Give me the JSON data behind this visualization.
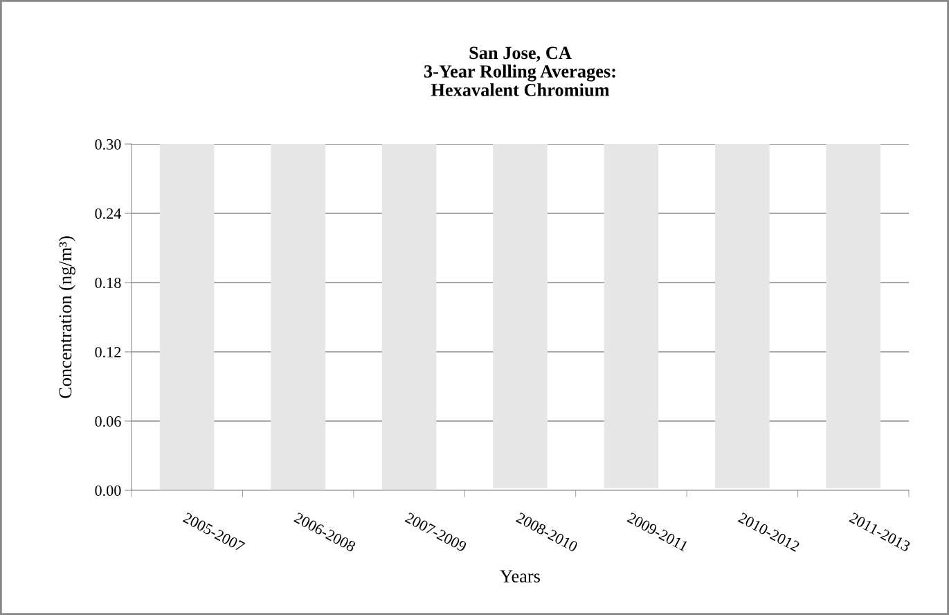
{
  "chart_data": {
    "type": "bar",
    "title": "San Jose, CA\n3-Year Rolling Averages:\nHexavalent Chromium",
    "xlabel": "Years",
    "ylabel": "Concentration (ng/m³)",
    "categories": [
      "2005-2007",
      "2006-2008",
      "2007-2009",
      "2008-2010",
      "2009-2011",
      "2010-2012",
      "2011-2013"
    ],
    "base": [
      0,
      0,
      0,
      0.002,
      0.002,
      0.002,
      0.002
    ],
    "values": [
      0.3,
      0.3,
      0.3,
      0.298,
      0.298,
      0.298,
      0.298
    ],
    "color": "#e6e6e6",
    "ylim": [
      0,
      0.3
    ],
    "yticks": [
      {
        "value": 0,
        "label": "0.00"
      },
      {
        "value": 0.06,
        "label": "0.06"
      },
      {
        "value": 0.12,
        "label": "0.12"
      },
      {
        "value": 0.18,
        "label": "0.18"
      },
      {
        "value": 0.24,
        "label": "0.24"
      },
      {
        "value": 0.3,
        "label": "0.30"
      }
    ],
    "grid": "y",
    "legend": false
  }
}
